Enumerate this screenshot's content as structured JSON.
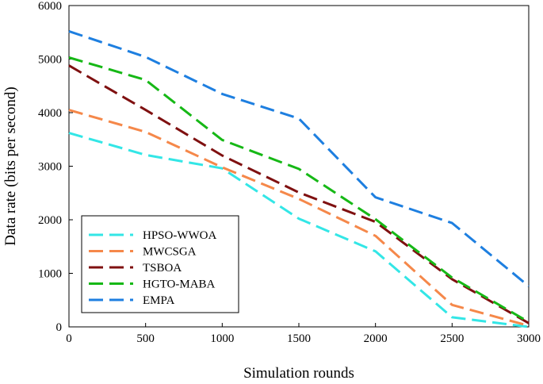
{
  "chart_data": {
    "type": "line",
    "title": "",
    "xlabel": "Simulation rounds",
    "ylabel": "Data rate (bits per second)",
    "xlim": [
      0,
      3000
    ],
    "ylim": [
      0,
      6000
    ],
    "xticks": [
      0,
      500,
      1000,
      1500,
      2000,
      2500,
      3000
    ],
    "yticks": [
      0,
      1000,
      2000,
      3000,
      4000,
      5000,
      6000
    ],
    "x": [
      0,
      500,
      1000,
      1500,
      2000,
      2500,
      3000
    ],
    "grid": false,
    "legend_position": "bottom-left",
    "series": [
      {
        "name": "HPSO-WWOA",
        "color": "#33e6e6",
        "values": [
          3620,
          3210,
          2960,
          2020,
          1410,
          180,
          0
        ]
      },
      {
        "name": "MWCSGA",
        "color": "#f5884a",
        "values": [
          4050,
          3640,
          2980,
          2390,
          1700,
          410,
          20
        ]
      },
      {
        "name": "TSBOA",
        "color": "#7f1010",
        "values": [
          4880,
          4050,
          3200,
          2510,
          1960,
          890,
          70
        ]
      },
      {
        "name": "HGTO-MABA",
        "color": "#16b816",
        "values": [
          5030,
          4610,
          3490,
          2950,
          2010,
          920,
          90
        ]
      },
      {
        "name": "EMPA",
        "color": "#1e7fe0",
        "values": [
          5520,
          5040,
          4350,
          3890,
          2420,
          1940,
          760
        ]
      }
    ]
  }
}
